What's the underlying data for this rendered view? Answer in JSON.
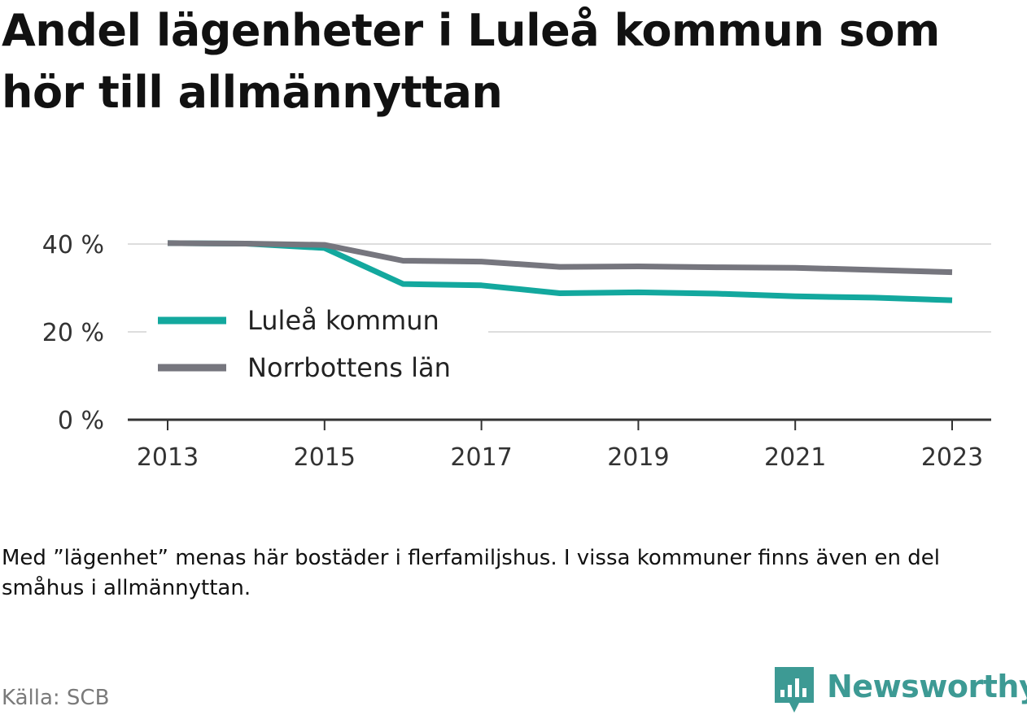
{
  "title": "Andel lägenheter i Luleå kommun som hör till allmännyttan",
  "note": "Med ”lägenhet” menas här bostäder i flerfamiljshus. I vissa kommuner finns även en del småhus i allmännyttan.",
  "source": "Källa: SCB",
  "brand": {
    "name": "Newsworthy",
    "logo_icon": "newsworthy-logo-icon"
  },
  "colors": {
    "lulea": "#13a89e",
    "norrbotten": "#76767e",
    "grid": "#dddddd",
    "axis": "#333333",
    "text": "#333333",
    "brand": "#3d9a94"
  },
  "chart_data": {
    "type": "line",
    "x": [
      2013,
      2014,
      2015,
      2016,
      2017,
      2018,
      2019,
      2020,
      2021,
      2022,
      2023
    ],
    "series": [
      {
        "name": "Luleå kommun",
        "color": "#13a89e",
        "values": [
          40.2,
          40.1,
          39.1,
          30.9,
          30.6,
          28.8,
          29.0,
          28.7,
          28.1,
          27.8,
          27.2
        ]
      },
      {
        "name": "Norrbottens län",
        "color": "#76767e",
        "values": [
          40.2,
          40.1,
          39.8,
          36.2,
          36.0,
          34.8,
          34.9,
          34.7,
          34.6,
          34.1,
          33.6
        ]
      }
    ],
    "xticks": [
      2013,
      2015,
      2017,
      2019,
      2021,
      2023
    ],
    "yticks": [
      0,
      20,
      40
    ],
    "ytick_labels": [
      "0 %",
      "20 %",
      "40 %"
    ],
    "xlim": [
      2012.5,
      2023.5
    ],
    "ylim": [
      0,
      40
    ],
    "grid": true,
    "legend_position": "inside-left"
  }
}
